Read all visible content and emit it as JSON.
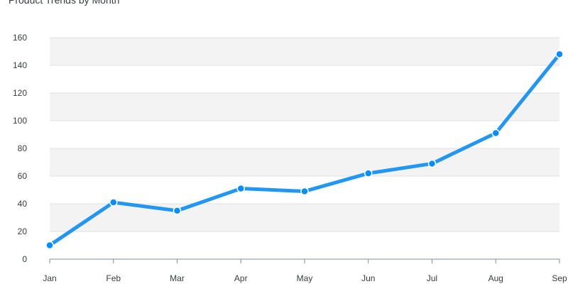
{
  "chart_data": {
    "type": "line",
    "title": "Product Trends by Month",
    "xlabel": "",
    "ylabel": "",
    "categories": [
      "Jan",
      "Feb",
      "Mar",
      "Apr",
      "May",
      "Jun",
      "Jul",
      "Aug",
      "Sep"
    ],
    "series": [
      {
        "values": [
          10,
          41,
          35,
          51,
          49,
          62,
          69,
          91,
          148
        ]
      }
    ],
    "ylim": [
      0,
      160
    ],
    "yticks": [
      "0",
      "20",
      "40",
      "60",
      "80",
      "100",
      "120",
      "140",
      "160"
    ],
    "grid": true,
    "grid_style": "alternating horizontal bands",
    "line_color": "#2196f3",
    "marker_color": "#008ffb",
    "band_color": "#f3f3f3"
  }
}
